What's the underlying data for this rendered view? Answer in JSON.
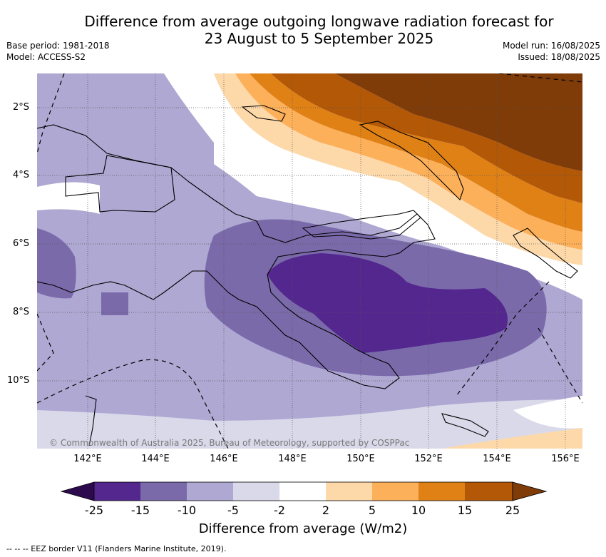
{
  "header": {
    "title_line1": "Difference from average outgoing longwave radiation forecast for",
    "title_line2": "23 August to 5 September 2025",
    "base_period": "Base period: 1981-2018",
    "model": "Model: ACCESS-S2",
    "model_run": "Model run: 16/08/2025",
    "issued": "Issued: 18/08/2025"
  },
  "map": {
    "lat_labels": [
      "2°S",
      "4°S",
      "6°S",
      "8°S",
      "10°S"
    ],
    "lon_labels": [
      "142°E",
      "144°E",
      "146°E",
      "148°E",
      "150°E",
      "152°E",
      "154°E",
      "156°E"
    ],
    "credit": "© Commonwealth of Australia 2025, Bureau of Meteorology, supported by COSPPac"
  },
  "colorbar": {
    "ticks": [
      "-25",
      "-15",
      "-10",
      "-5",
      "-2",
      "2",
      "5",
      "10",
      "15",
      "25"
    ],
    "colors": [
      "#2d0a4e",
      "#54278f",
      "#7a6aaa",
      "#aea8d2",
      "#d9d9ea",
      "#ffffff",
      "#fdd9aa",
      "#fdb05a",
      "#e08116",
      "#b35806",
      "#7f3b08"
    ],
    "label": "Difference from average (W/m2)"
  },
  "footnote": "--  --  -- EEZ border V11 (Flanders Marine Institute, 2019)."
}
